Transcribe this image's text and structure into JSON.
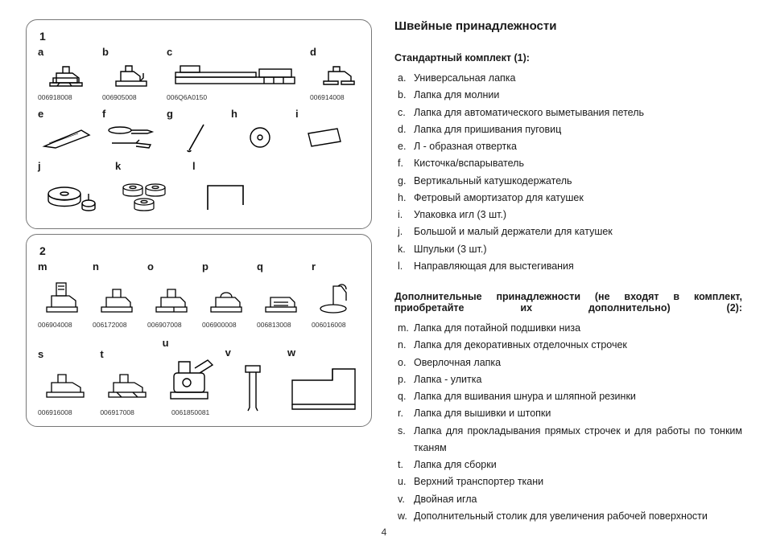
{
  "page_number": "4",
  "title": "Швейные принадлежности",
  "section1": {
    "num": "1",
    "subtitle": "Стандартный комплект (1):",
    "row1": [
      {
        "letter": "a",
        "part": "006918008"
      },
      {
        "letter": "b",
        "part": "006905008"
      },
      {
        "letter": "c",
        "part": "006Q6A0150"
      },
      {
        "letter": "d",
        "part": "006914008"
      }
    ],
    "row2": [
      {
        "letter": "e"
      },
      {
        "letter": "f"
      },
      {
        "letter": "g"
      },
      {
        "letter": "h"
      },
      {
        "letter": "i"
      }
    ],
    "row3": [
      {
        "letter": "j"
      },
      {
        "letter": "k"
      },
      {
        "letter": "l"
      }
    ],
    "items": [
      {
        "k": "a.",
        "v": "Универсальная лапка"
      },
      {
        "k": "b.",
        "v": "Лапка для молнии"
      },
      {
        "k": "c.",
        "v": "Лапка для автоматического выметывания петель"
      },
      {
        "k": "d.",
        "v": "Лапка для пришивания пуговиц"
      },
      {
        "k": "e.",
        "v": "Л - образная отвертка"
      },
      {
        "k": "f.",
        "v": "Кисточка/вспарыватель"
      },
      {
        "k": "g.",
        "v": "Вертикальный катушкодержатель"
      },
      {
        "k": "h.",
        "v": "Фетровый амортизатор для катушек"
      },
      {
        "k": "i.",
        "v": "Упаковка игл (3 шт.)"
      },
      {
        "k": "j.",
        "v": "Большой и малый держатели для катушек"
      },
      {
        "k": "k.",
        "v": "Шпульки (3 шт.)"
      },
      {
        "k": "l.",
        "v": "Направляющая для выстегивания"
      }
    ]
  },
  "section2": {
    "num": "2",
    "subtitle": "Дополнительные принадлежности (не входят в комплект, приобретайте их дополнительно) (2):",
    "row1": [
      {
        "letter": "m",
        "part": "006904008"
      },
      {
        "letter": "n",
        "part": "006172008"
      },
      {
        "letter": "o",
        "part": "006907008"
      },
      {
        "letter": "p",
        "part": "006900008"
      },
      {
        "letter": "q",
        "part": "006813008"
      },
      {
        "letter": "r",
        "part": "006016008"
      }
    ],
    "row2": [
      {
        "letter": "s",
        "part": "006916008"
      },
      {
        "letter": "t",
        "part": "006917008"
      },
      {
        "letter": "u",
        "part": "0061850081"
      },
      {
        "letter": "v"
      },
      {
        "letter": "w"
      }
    ],
    "items": [
      {
        "k": "m.",
        "v": "Лапка для потайной подшивки низа"
      },
      {
        "k": "n.",
        "v": "Лапка для декоративных отделочных строчек"
      },
      {
        "k": "o.",
        "v": "Оверлочная лапка"
      },
      {
        "k": "p.",
        "v": "Лапка - улитка"
      },
      {
        "k": "q.",
        "v": "Лапка для вшивания шнура и шляпной резинки"
      },
      {
        "k": "r.",
        "v": "Лапка для вышивки и штопки"
      },
      {
        "k": "s.",
        "v": "Лапка для прокладывания прямых строчек и для работы по тонким тканям",
        "justify": true
      },
      {
        "k": "t.",
        "v": "Лапка для сборки"
      },
      {
        "k": "u.",
        "v": "Верхний транспортер ткани"
      },
      {
        "k": "v.",
        "v": "Двойная игла"
      },
      {
        "k": "w.",
        "v": "Дополнительный столик для увеличения рабочей поверхности"
      }
    ]
  }
}
